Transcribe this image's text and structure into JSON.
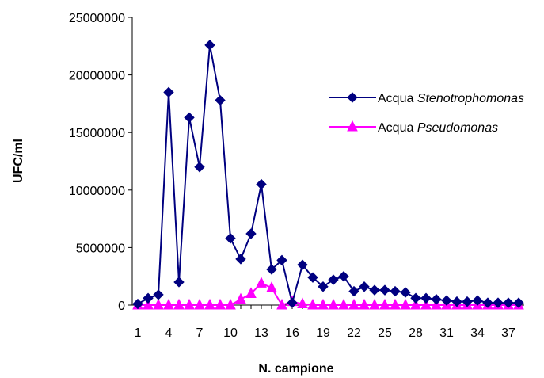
{
  "chart_data": {
    "type": "line",
    "title": "",
    "xlabel": "N. campione",
    "ylabel": "UFC/ml",
    "ylim": [
      0,
      25000000
    ],
    "y_ticks": [
      "0",
      "5000000",
      "10000000",
      "15000000",
      "20000000",
      "25000000"
    ],
    "x": [
      1,
      2,
      3,
      4,
      5,
      6,
      7,
      8,
      9,
      10,
      11,
      12,
      13,
      14,
      15,
      16,
      17,
      18,
      19,
      20,
      21,
      22,
      23,
      24,
      25,
      26,
      27,
      28,
      29,
      30,
      31,
      32,
      33,
      34,
      35,
      36,
      37,
      38
    ],
    "x_tick_labels": [
      "1",
      "4",
      "7",
      "10",
      "13",
      "16",
      "19",
      "22",
      "25",
      "28",
      "31",
      "34",
      "37"
    ],
    "grid": false,
    "legend_position": "right",
    "series": [
      {
        "name_plain": "Acqua ",
        "name_italic": "Stenotrophomonas",
        "color": "#000080",
        "marker": "diamond",
        "values": [
          100000,
          600000,
          900000,
          18500000,
          2000000,
          16300000,
          12000000,
          22600000,
          17800000,
          5800000,
          4000000,
          6200000,
          10500000,
          3100000,
          3900000,
          200000,
          3500000,
          2400000,
          1600000,
          2200000,
          2500000,
          1200000,
          1600000,
          1300000,
          1300000,
          1200000,
          1100000,
          600000,
          600000,
          500000,
          400000,
          300000,
          300000,
          400000,
          200000,
          200000,
          200000,
          200000
        ]
      },
      {
        "name_plain": "Acqua ",
        "name_italic": "Pseudomonas",
        "color": "#ff00ff",
        "marker": "triangle",
        "values": [
          0,
          0,
          0,
          0,
          0,
          0,
          0,
          0,
          0,
          0,
          500000,
          1000000,
          1900000,
          1500000,
          0,
          300000,
          100000,
          0,
          0,
          0,
          0,
          0,
          0,
          0,
          0,
          0,
          0,
          0,
          0,
          0,
          0,
          0,
          0,
          0,
          0,
          0,
          0,
          0
        ]
      }
    ]
  }
}
